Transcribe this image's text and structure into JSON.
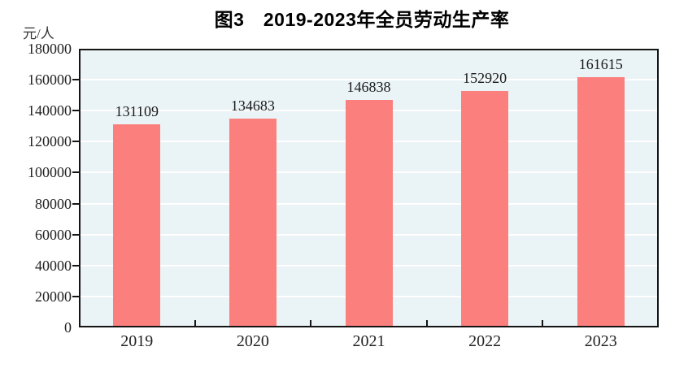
{
  "chart_data": {
    "type": "bar",
    "title": "图3　2019-2023年全员劳动生产率",
    "ylabel": "元/人",
    "xlabel": "",
    "categories": [
      "2019",
      "2020",
      "2021",
      "2022",
      "2023"
    ],
    "values": [
      131109,
      134683,
      146838,
      152920,
      161615
    ],
    "value_labels": [
      "131109",
      "134683",
      "146838",
      "152920",
      "161615"
    ],
    "ylim": [
      0,
      180000
    ],
    "ytick_step": 20000,
    "yticks": [
      "0",
      "20000",
      "40000",
      "60000",
      "80000",
      "100000",
      "120000",
      "140000",
      "160000",
      "180000"
    ],
    "grid": true,
    "legend_position": "none",
    "colors": {
      "bar": "#fb7f7c",
      "plot_background": "#eaf3f6",
      "gridline": "#ffffff",
      "axis": "#141414",
      "tick_text": "#222222",
      "value_text": "#1a1a1a",
      "unit_text": "#333333"
    }
  }
}
